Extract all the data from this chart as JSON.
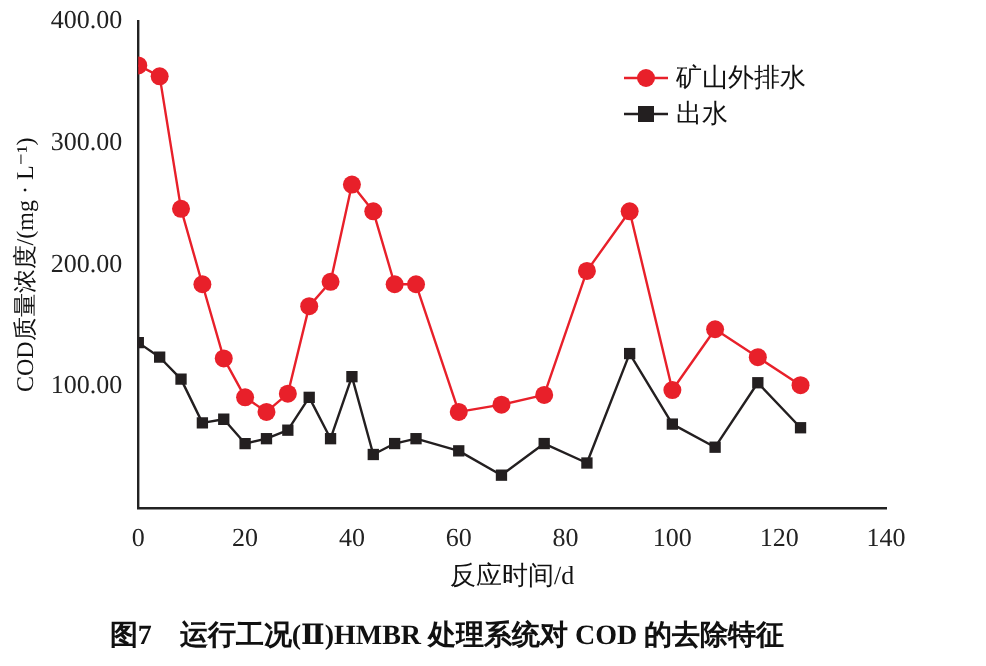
{
  "chart_data": {
    "type": "line",
    "title": "图7　运行工况(Ⅱ)HMBR 处理系统对 COD 的去除特征",
    "xlabel": "反应时间/d",
    "ylabel": "COD质量浓度/(mg · L⁻¹)",
    "x": [
      0,
      4,
      8,
      12,
      16,
      20,
      24,
      28,
      32,
      36,
      40,
      44,
      48,
      52,
      60,
      68,
      76,
      84,
      92,
      100,
      108,
      116,
      124
    ],
    "series": [
      {
        "name": "矿山外排水",
        "color": "#e8202a",
        "marker": "circle",
        "values": [
          364,
          355,
          246,
          184,
          123,
          91,
          79,
          94,
          166,
          186,
          266,
          244,
          184,
          184,
          79,
          85,
          93,
          195,
          244,
          97,
          147,
          124,
          101
        ]
      },
      {
        "name": "出水",
        "color": "#231f20",
        "marker": "square",
        "values": [
          136,
          124,
          106,
          70,
          73,
          53,
          57,
          64,
          91,
          57,
          108,
          44,
          53,
          57,
          47,
          27,
          53,
          37,
          127,
          69,
          50,
          103,
          66
        ]
      }
    ],
    "xlim": [
      0,
      140
    ],
    "xticks": [
      0,
      20,
      40,
      60,
      80,
      100,
      120,
      140
    ],
    "ylim": [
      0,
      400
    ],
    "yticks": [
      {
        "value": 100,
        "label": "100.00"
      },
      {
        "value": 200,
        "label": "200.00"
      },
      {
        "value": 300,
        "label": "300.00"
      },
      {
        "value": 400,
        "label": "400.00"
      }
    ],
    "grid": false,
    "legend": "top right"
  }
}
